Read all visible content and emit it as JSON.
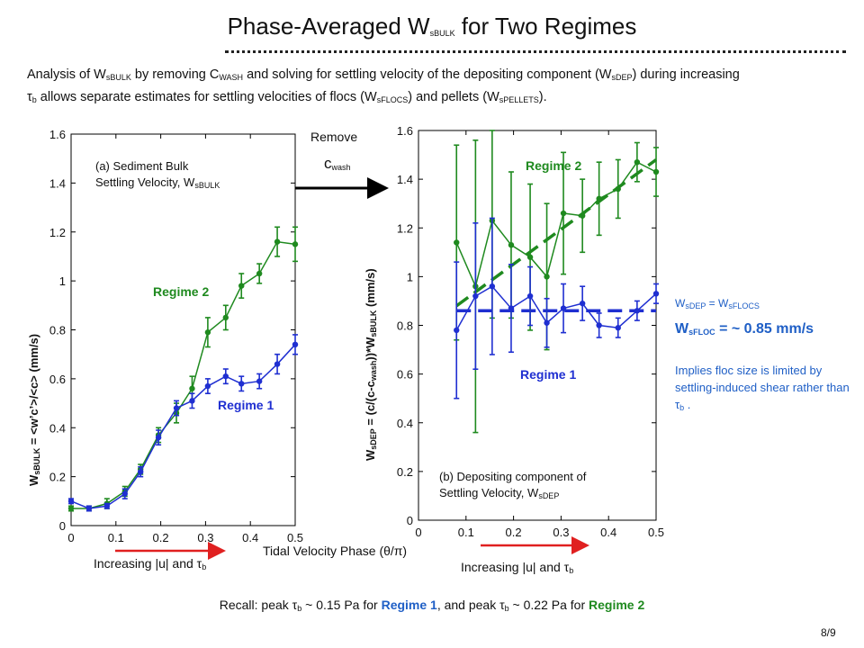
{
  "title": {
    "prefix": "Phase-Averaged W",
    "sub": "sBULK",
    "suffix": " for Two Regimes"
  },
  "intro": {
    "p1": "Analysis of W",
    "s1": "sBULK",
    "p2": "  by removing C",
    "s2": "WASH",
    "p3": " and solving for settling velocity of the depositing component (W",
    "s3": "sDEP",
    "p4": ") during increasing ",
    "tau": "τ",
    "s4": "b",
    "p5": " allows separate estimates for settling velocities of flocs (W",
    "s5": "sFLOCS",
    "p6": ") and pellets (W",
    "s6": "sPELLETS",
    "p7": ")."
  },
  "remove": {
    "label": "Remove",
    "c": "c",
    "c_sub": "wash"
  },
  "right_notes": {
    "eq_left": "W",
    "eq_left_sub": "sDEP",
    "eq_mid": " = W",
    "eq_right_sub": "sFLOCS",
    "floc_w": "W",
    "floc_sub": "sFLOC",
    "floc_val": " = ~ 0.85 mm/s",
    "implies": "Implies floc size is limited by settling-induced shear rather than ",
    "implies_tau": "τ",
    "implies_sub": "b",
    "implies_end": " ."
  },
  "recall": {
    "a": "Recall: peak τ",
    "a_sub": "b",
    "b": " ~ 0.15 Pa for ",
    "r1": "Regime 1",
    "c": ", and peak τ",
    "c_sub": "b",
    "d": " ~ 0.22 Pa for ",
    "r2": "Regime 2"
  },
  "page_number": "8/9",
  "colors": {
    "regime1": "#1f2fd1",
    "regime2": "#1f8a1f",
    "arrow_red": "#e02020",
    "note_blue": "#1f5fc6"
  },
  "shared_xlabel": "Tidal Velocity Phase (θ/π)",
  "chart_data": [
    {
      "type": "line",
      "annotation_line1": "(a) Sediment Bulk",
      "annotation_line2": "Settling Velocity, W",
      "annotation_sub": "sBULK",
      "ylabel": "W sBULK = <w'c'>/<c> (mm/s)",
      "ylabel_parts": {
        "w": "W",
        "sub": "sBULK",
        "rest": " = <w’c’>/<c> (mm/s)"
      },
      "xlim": [
        0,
        0.5
      ],
      "ylim": [
        0,
        1.6
      ],
      "xticks": [
        "0",
        "0.1",
        "0.2",
        "0.3",
        "0.4",
        "0.5"
      ],
      "yticks": [
        "0",
        "0.2",
        "0.4",
        "0.6",
        "0.8",
        "1",
        "1.2",
        "1.4",
        "1.6"
      ],
      "increasing_label": "Increasing |u| and τ",
      "increasing_sub": "b",
      "series": [
        {
          "name": "Regime 2",
          "color": "#1f8a1f",
          "x": [
            0.0,
            0.04,
            0.08,
            0.12,
            0.155,
            0.195,
            0.235,
            0.27,
            0.305,
            0.345,
            0.38,
            0.42,
            0.46,
            0.5
          ],
          "y": [
            0.07,
            0.07,
            0.09,
            0.14,
            0.23,
            0.37,
            0.46,
            0.56,
            0.79,
            0.85,
            0.98,
            1.03,
            1.16,
            1.15
          ],
          "err": [
            0.01,
            0.01,
            0.02,
            0.02,
            0.02,
            0.03,
            0.04,
            0.05,
            0.06,
            0.05,
            0.05,
            0.04,
            0.06,
            0.07
          ]
        },
        {
          "name": "Regime 1",
          "color": "#1f2fd1",
          "x": [
            0.0,
            0.04,
            0.08,
            0.12,
            0.155,
            0.195,
            0.235,
            0.27,
            0.305,
            0.345,
            0.38,
            0.42,
            0.46,
            0.5
          ],
          "y": [
            0.1,
            0.07,
            0.08,
            0.13,
            0.22,
            0.36,
            0.48,
            0.51,
            0.57,
            0.61,
            0.58,
            0.59,
            0.66,
            0.74
          ],
          "err": [
            0.01,
            0.01,
            0.01,
            0.02,
            0.02,
            0.03,
            0.03,
            0.03,
            0.03,
            0.03,
            0.03,
            0.03,
            0.04,
            0.04
          ]
        }
      ]
    },
    {
      "type": "line",
      "annotation_line1": "(b) Depositing component of",
      "annotation_line2": "Settling Velocity, W",
      "annotation_sub": "sDEP",
      "ylabel_parts": {
        "w": "W",
        "sub": "sDEP",
        "rest": " = (c/(c-c",
        "sub2": "wash",
        "rest2": "))*W",
        "sub3": "sBULK",
        "rest3": " (mm/s)"
      },
      "xlim": [
        0,
        0.5
      ],
      "ylim": [
        0,
        1.6
      ],
      "xticks": [
        "0",
        "0.1",
        "0.2",
        "0.3",
        "0.4",
        "0.5"
      ],
      "yticks": [
        "0",
        "0.2",
        "0.4",
        "0.6",
        "0.8",
        "1",
        "1.2",
        "1.4",
        "1.6"
      ],
      "increasing_label": "Increasing |u| and τ",
      "increasing_sub": "b",
      "series": [
        {
          "name": "Regime 2",
          "color": "#1f8a1f",
          "x": [
            0.08,
            0.12,
            0.155,
            0.195,
            0.235,
            0.27,
            0.305,
            0.345,
            0.38,
            0.42,
            0.46,
            0.5
          ],
          "y": [
            1.14,
            0.96,
            1.23,
            1.13,
            1.08,
            1.0,
            1.26,
            1.25,
            1.32,
            1.36,
            1.47,
            1.43
          ],
          "err": [
            0.4,
            0.6,
            0.4,
            0.3,
            0.3,
            0.3,
            0.25,
            0.15,
            0.15,
            0.12,
            0.08,
            0.1
          ]
        },
        {
          "name": "Regime 1",
          "color": "#1f2fd1",
          "x": [
            0.08,
            0.12,
            0.155,
            0.195,
            0.235,
            0.27,
            0.305,
            0.345,
            0.38,
            0.42,
            0.46,
            0.5
          ],
          "y": [
            0.78,
            0.92,
            0.96,
            0.87,
            0.92,
            0.81,
            0.87,
            0.89,
            0.8,
            0.79,
            0.86,
            0.93
          ],
          "err": [
            0.28,
            0.3,
            0.28,
            0.18,
            0.12,
            0.1,
            0.1,
            0.07,
            0.05,
            0.04,
            0.04,
            0.04
          ]
        }
      ],
      "fit_lines": [
        {
          "series": "Regime 2",
          "x": [
            0.08,
            0.5
          ],
          "y": [
            0.88,
            1.48
          ],
          "style": "dashed"
        },
        {
          "series": "Regime 1",
          "x": [
            0.08,
            0.5
          ],
          "y": [
            0.86,
            0.86
          ],
          "style": "dashed"
        }
      ]
    }
  ]
}
